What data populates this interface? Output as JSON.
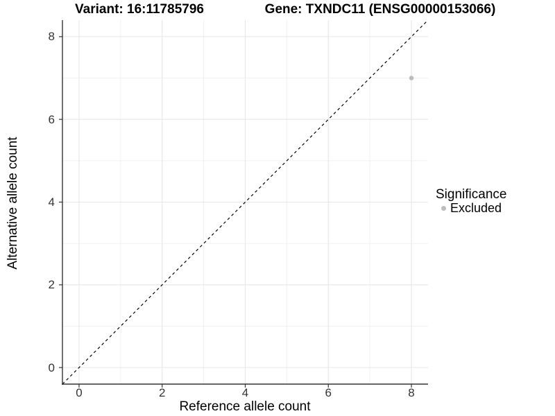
{
  "titles": {
    "variant": "Variant: 16:11785796",
    "gene": "Gene: TXNDC11 (ENSG00000153066)"
  },
  "legend": {
    "title": "Significance",
    "items": [
      {
        "label": "Excluded",
        "color": "#bdbdbd"
      }
    ]
  },
  "chart_data": {
    "type": "scatter",
    "title": "Variant: 16:11785796",
    "subtitle": "Gene: TXNDC11 (ENSG00000153066)",
    "xlabel": "Reference allele count",
    "ylabel": "Alternative allele count",
    "xlim": [
      -0.4,
      8.4
    ],
    "ylim": [
      -0.4,
      8.4
    ],
    "x_ticks": [
      0,
      2,
      4,
      6,
      8
    ],
    "y_ticks": [
      0,
      2,
      4,
      6,
      8
    ],
    "x_minor_ticks": [
      1,
      3,
      5,
      7
    ],
    "y_minor_ticks": [
      1,
      3,
      5,
      7
    ],
    "grid": "major and minor, light gray on white",
    "legend_position": "right",
    "series": [
      {
        "name": "Excluded",
        "color": "#bdbdbd",
        "points": [
          {
            "x": 8,
            "y": 7
          }
        ]
      }
    ],
    "reference_line": {
      "kind": "identity y=x",
      "style": "dashed",
      "color": "#000000"
    }
  },
  "colors": {
    "background": "#ffffff",
    "axis_line": "#333333",
    "tick_text": "#333333",
    "major_grid": "#e6e6e6",
    "minor_grid": "#efefef",
    "point": "#bdbdbd",
    "dashed_line": "#000000"
  }
}
